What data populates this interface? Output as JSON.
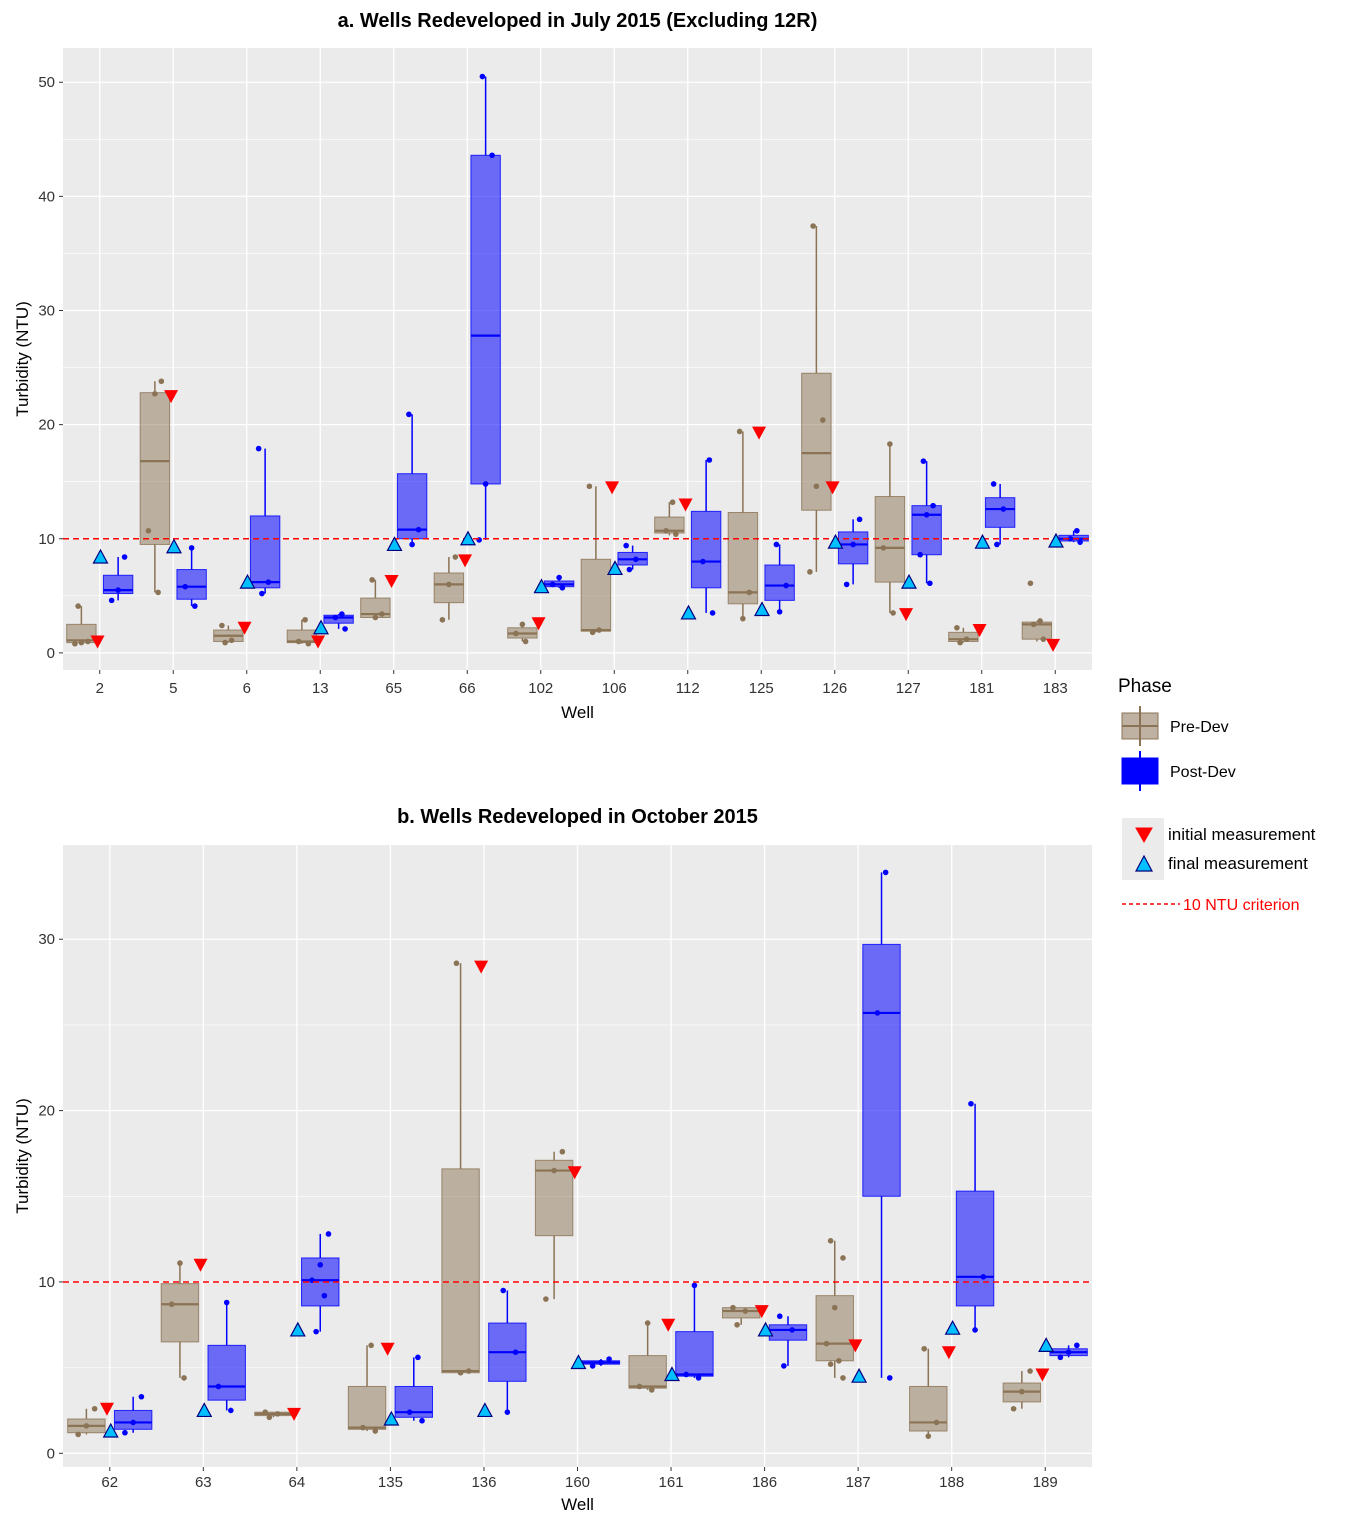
{
  "colors": {
    "pre": "#8b7355",
    "post": "#0000ff",
    "panel_bg": "#ebebeb",
    "grid": "#ffffff",
    "criterion": "#ff0000",
    "initial": "#ff0000",
    "final": "#00c0ff"
  },
  "legend": {
    "title": "Phase",
    "pre_label": "Pre-Dev",
    "post_label": "Post-Dev",
    "initial_label": "initial measurement",
    "final_label": "final measurement",
    "criterion_label": "10 NTU criterion"
  },
  "chart_data": [
    {
      "type": "box",
      "title": "a. Wells Redeveloped in July 2015 (Excluding 12R)",
      "xlabel": "Well",
      "ylabel": "Turbidity (NTU)",
      "ylim": [
        -1.5,
        53
      ],
      "yticks": [
        0,
        10,
        20,
        30,
        40,
        50
      ],
      "criterion": 10,
      "categories": [
        "2",
        "5",
        "6",
        "13",
        "65",
        "66",
        "102",
        "106",
        "112",
        "125",
        "126",
        "127",
        "181",
        "183"
      ],
      "pre": [
        {
          "min": 0.8,
          "q1": 0.9,
          "median": 1.1,
          "q3": 2.5,
          "max": 4.1,
          "points": [
            0.8,
            0.9,
            1.0,
            4.1
          ],
          "initial": 1.0
        },
        {
          "min": 5.3,
          "q1": 9.5,
          "median": 16.8,
          "q3": 22.8,
          "max": 23.8,
          "points": [
            5.3,
            10.7,
            22.7,
            23.8
          ],
          "initial": 22.5
        },
        {
          "min": 0.9,
          "q1": 1.0,
          "median": 1.5,
          "q3": 2.0,
          "max": 2.4,
          "points": [
            0.9,
            1.1,
            2.4
          ],
          "initial": 2.2
        },
        {
          "min": 0.8,
          "q1": 0.9,
          "median": 1.0,
          "q3": 2.0,
          "max": 2.9,
          "points": [
            0.8,
            1.0,
            2.9
          ],
          "initial": 1.0
        },
        {
          "min": 3.0,
          "q1": 3.1,
          "median": 3.4,
          "q3": 4.8,
          "max": 6.4,
          "points": [
            3.1,
            3.4,
            6.4
          ],
          "initial": 6.3
        },
        {
          "min": 2.9,
          "q1": 4.4,
          "median": 6.0,
          "q3": 7.0,
          "max": 8.4,
          "points": [
            2.9,
            6.0,
            8.4
          ],
          "initial": 8.1
        },
        {
          "min": 1.0,
          "q1": 1.3,
          "median": 1.7,
          "q3": 2.2,
          "max": 2.5,
          "points": [
            1.0,
            1.7,
            2.5
          ],
          "initial": 2.6
        },
        {
          "min": 1.8,
          "q1": 1.9,
          "median": 2.0,
          "q3": 8.2,
          "max": 14.6,
          "points": [
            1.8,
            2.0,
            14.6
          ],
          "initial": 14.5
        },
        {
          "min": 10.3,
          "q1": 10.5,
          "median": 10.7,
          "q3": 11.9,
          "max": 13.2,
          "points": [
            10.4,
            10.7,
            13.2
          ],
          "initial": 13.0
        },
        {
          "min": 3.0,
          "q1": 4.3,
          "median": 5.3,
          "q3": 12.3,
          "max": 19.4,
          "points": [
            3.0,
            5.3,
            19.4
          ],
          "initial": 19.3
        },
        {
          "min": 7.1,
          "q1": 12.5,
          "median": 17.5,
          "q3": 24.5,
          "max": 37.4,
          "points": [
            7.1,
            14.6,
            20.4,
            37.4
          ],
          "initial": 14.5
        },
        {
          "min": 3.5,
          "q1": 6.2,
          "median": 9.2,
          "q3": 13.7,
          "max": 18.3,
          "points": [
            3.5,
            9.2,
            18.3
          ],
          "initial": 3.4
        },
        {
          "min": 0.9,
          "q1": 1.0,
          "median": 1.2,
          "q3": 1.8,
          "max": 2.2,
          "points": [
            0.9,
            1.2,
            2.2
          ],
          "initial": 2.0
        },
        {
          "min": 1.0,
          "q1": 1.2,
          "median": 2.5,
          "q3": 2.7,
          "max": 2.8,
          "points": [
            1.2,
            2.5,
            2.8,
            6.1
          ],
          "initial": 0.7
        }
      ],
      "post": [
        {
          "min": 4.6,
          "q1": 5.2,
          "median": 5.5,
          "q3": 6.8,
          "max": 8.4,
          "points": [
            4.6,
            5.5,
            8.4
          ],
          "final": 8.4
        },
        {
          "min": 4.1,
          "q1": 4.7,
          "median": 5.8,
          "q3": 7.3,
          "max": 9.2,
          "points": [
            4.1,
            5.8,
            9.2
          ],
          "final": 9.3
        },
        {
          "min": 5.2,
          "q1": 5.7,
          "median": 6.2,
          "q3": 12.0,
          "max": 17.9,
          "points": [
            5.2,
            6.2,
            17.9
          ],
          "final": 6.2
        },
        {
          "min": 2.1,
          "q1": 2.6,
          "median": 3.1,
          "q3": 3.3,
          "max": 3.4,
          "points": [
            2.1,
            3.1,
            3.4
          ],
          "final": 2.2
        },
        {
          "min": 9.5,
          "q1": 10.0,
          "median": 10.8,
          "q3": 15.7,
          "max": 20.9,
          "points": [
            9.5,
            10.8,
            20.9
          ],
          "final": 9.5
        },
        {
          "min": 9.9,
          "q1": 14.8,
          "median": 27.8,
          "q3": 43.6,
          "max": 50.5,
          "points": [
            9.9,
            14.8,
            43.6,
            50.5
          ],
          "final": 10.0
        },
        {
          "min": 5.7,
          "q1": 5.8,
          "median": 6.0,
          "q3": 6.3,
          "max": 6.6,
          "points": [
            5.7,
            6.0,
            6.6
          ],
          "final": 5.8
        },
        {
          "min": 7.3,
          "q1": 7.7,
          "median": 8.2,
          "q3": 8.8,
          "max": 9.4,
          "points": [
            7.3,
            8.2,
            9.4
          ],
          "final": 7.4
        },
        {
          "min": 3.5,
          "q1": 5.7,
          "median": 8.0,
          "q3": 12.4,
          "max": 16.9,
          "points": [
            3.5,
            8.0,
            16.9
          ],
          "final": 3.5
        },
        {
          "min": 3.6,
          "q1": 4.6,
          "median": 5.9,
          "q3": 7.7,
          "max": 9.5,
          "points": [
            3.6,
            5.9,
            9.5
          ],
          "final": 3.8
        },
        {
          "min": 6.0,
          "q1": 7.8,
          "median": 9.5,
          "q3": 10.6,
          "max": 11.7,
          "points": [
            6.0,
            9.5,
            11.7
          ],
          "final": 9.7
        },
        {
          "min": 6.1,
          "q1": 8.6,
          "median": 12.1,
          "q3": 12.9,
          "max": 16.8,
          "points": [
            6.1,
            8.6,
            12.1,
            12.9,
            16.8
          ],
          "final": 6.2
        },
        {
          "min": 9.5,
          "q1": 11.0,
          "median": 12.6,
          "q3": 13.6,
          "max": 14.8,
          "points": [
            9.5,
            12.6,
            14.8
          ],
          "final": 9.7
        },
        {
          "min": 9.7,
          "q1": 9.8,
          "median": 10.0,
          "q3": 10.3,
          "max": 10.7,
          "points": [
            9.7,
            10.0,
            10.7
          ],
          "final": 9.8
        }
      ]
    },
    {
      "type": "box",
      "title": "b. Wells Redeveloped in October 2015",
      "xlabel": "Well",
      "ylabel": "Turbidity (NTU)",
      "ylim": [
        -0.8,
        35.5
      ],
      "yticks": [
        0,
        10,
        20,
        30
      ],
      "criterion": 10,
      "categories": [
        "62",
        "63",
        "64",
        "135",
        "136",
        "160",
        "161",
        "186",
        "187",
        "188",
        "189"
      ],
      "pre": [
        {
          "min": 1.1,
          "q1": 1.2,
          "median": 1.6,
          "q3": 2.0,
          "max": 2.6,
          "points": [
            1.1,
            1.6,
            2.6
          ],
          "initial": 2.6
        },
        {
          "min": 4.4,
          "q1": 6.5,
          "median": 8.7,
          "q3": 9.9,
          "max": 11.1,
          "points": [
            4.4,
            8.7,
            11.1
          ],
          "initial": 11.0
        },
        {
          "min": 2.1,
          "q1": 2.2,
          "median": 2.3,
          "q3": 2.4,
          "max": 2.4,
          "points": [
            2.1,
            2.3,
            2.4
          ],
          "initial": 2.3
        },
        {
          "min": 1.3,
          "q1": 1.4,
          "median": 1.5,
          "q3": 3.9,
          "max": 6.3,
          "points": [
            1.3,
            1.5,
            6.3
          ],
          "initial": 6.1
        },
        {
          "min": 4.7,
          "q1": 4.7,
          "median": 4.8,
          "q3": 16.6,
          "max": 28.6,
          "points": [
            4.7,
            4.8,
            28.6
          ],
          "initial": 28.4
        },
        {
          "min": 9.0,
          "q1": 12.7,
          "median": 16.5,
          "q3": 17.1,
          "max": 17.6,
          "points": [
            9.0,
            16.5,
            17.6
          ],
          "initial": 16.4
        },
        {
          "min": 3.7,
          "q1": 3.8,
          "median": 3.9,
          "q3": 5.7,
          "max": 7.6,
          "points": [
            3.7,
            3.9,
            7.6
          ],
          "initial": 7.5
        },
        {
          "min": 7.5,
          "q1": 7.9,
          "median": 8.3,
          "q3": 8.5,
          "max": 8.5,
          "points": [
            7.5,
            8.3,
            8.5
          ],
          "initial": 8.3
        },
        {
          "min": 4.4,
          "q1": 5.4,
          "median": 6.4,
          "q3": 9.2,
          "max": 12.4,
          "points": [
            4.4,
            5.2,
            5.4,
            6.4,
            8.5,
            11.4,
            12.4
          ],
          "initial": 6.3
        },
        {
          "min": 1.0,
          "q1": 1.3,
          "median": 1.8,
          "q3": 3.9,
          "max": 6.1,
          "points": [
            1.0,
            1.8,
            6.1
          ],
          "initial": 5.9
        },
        {
          "min": 2.6,
          "q1": 3.0,
          "median": 3.6,
          "q3": 4.1,
          "max": 4.8,
          "points": [
            2.6,
            3.6,
            4.8
          ],
          "initial": 4.6
        }
      ],
      "post": [
        {
          "min": 1.2,
          "q1": 1.4,
          "median": 1.8,
          "q3": 2.5,
          "max": 3.3,
          "points": [
            1.2,
            1.8,
            3.3
          ],
          "final": 1.3
        },
        {
          "min": 2.5,
          "q1": 3.1,
          "median": 3.9,
          "q3": 6.3,
          "max": 8.8,
          "points": [
            2.5,
            3.9,
            8.8
          ],
          "final": 2.5
        },
        {
          "min": 7.1,
          "q1": 8.6,
          "median": 10.1,
          "q3": 11.4,
          "max": 12.8,
          "points": [
            7.1,
            9.2,
            10.1,
            11.0,
            12.8
          ],
          "final": 7.2
        },
        {
          "min": 1.9,
          "q1": 2.1,
          "median": 2.4,
          "q3": 3.9,
          "max": 5.6,
          "points": [
            1.9,
            2.4,
            5.6
          ],
          "final": 2.0
        },
        {
          "min": 2.4,
          "q1": 4.2,
          "median": 5.9,
          "q3": 7.6,
          "max": 9.5,
          "points": [
            2.4,
            5.9,
            9.5
          ],
          "final": 2.5
        },
        {
          "min": 5.1,
          "q1": 5.2,
          "median": 5.3,
          "q3": 5.4,
          "max": 5.5,
          "points": [
            5.1,
            5.3,
            5.5
          ],
          "final": 5.3
        },
        {
          "min": 4.4,
          "q1": 4.5,
          "median": 4.6,
          "q3": 7.1,
          "max": 9.8,
          "points": [
            4.4,
            4.6,
            9.8
          ],
          "final": 4.6
        },
        {
          "min": 5.1,
          "q1": 6.6,
          "median": 7.2,
          "q3": 7.5,
          "max": 8.0,
          "points": [
            5.1,
            7.2,
            8.0
          ],
          "final": 7.2
        },
        {
          "min": 4.4,
          "q1": 15.0,
          "median": 25.7,
          "q3": 29.7,
          "max": 33.9,
          "points": [
            4.4,
            25.7,
            33.9
          ],
          "final": 4.5
        },
        {
          "min": 7.2,
          "q1": 8.6,
          "median": 10.3,
          "q3": 15.3,
          "max": 20.4,
          "points": [
            7.2,
            10.3,
            20.4
          ],
          "final": 7.3
        },
        {
          "min": 5.6,
          "q1": 5.7,
          "median": 5.9,
          "q3": 6.1,
          "max": 6.3,
          "points": [
            5.6,
            5.9,
            6.3
          ],
          "final": 6.3
        }
      ]
    }
  ]
}
